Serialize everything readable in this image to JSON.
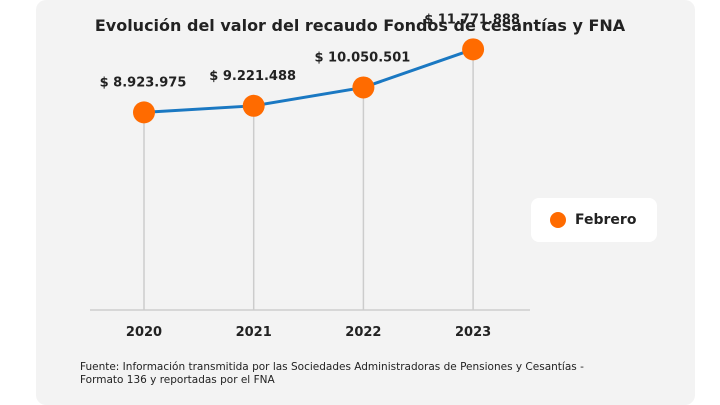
{
  "title": "Evolución del valor del recaudo Fondos de cesantías y FNA",
  "footnote": "Fuente: Información transmitida por las Sociedades Administradoras de Pensiones y Cesantías - Formato 136 y reportadas por el FNA",
  "colors": {
    "line": "#1a78c2",
    "marker": "#ff6b00",
    "drop": "#cccccc",
    "baseline": "#bbbbbb"
  },
  "chart_data": {
    "type": "line",
    "categories": [
      "2020",
      "2021",
      "2022",
      "2023"
    ],
    "series": [
      {
        "name": "Febrero",
        "values": [
          8923975,
          9221488,
          10050501,
          11771888
        ]
      }
    ],
    "data_labels": [
      "$ 8.923.975",
      "$ 9.221.488",
      "$ 10.050.501",
      "$ 11.771.888"
    ],
    "ylim": [
      0,
      14000000
    ],
    "grid": false,
    "legend": "right"
  }
}
